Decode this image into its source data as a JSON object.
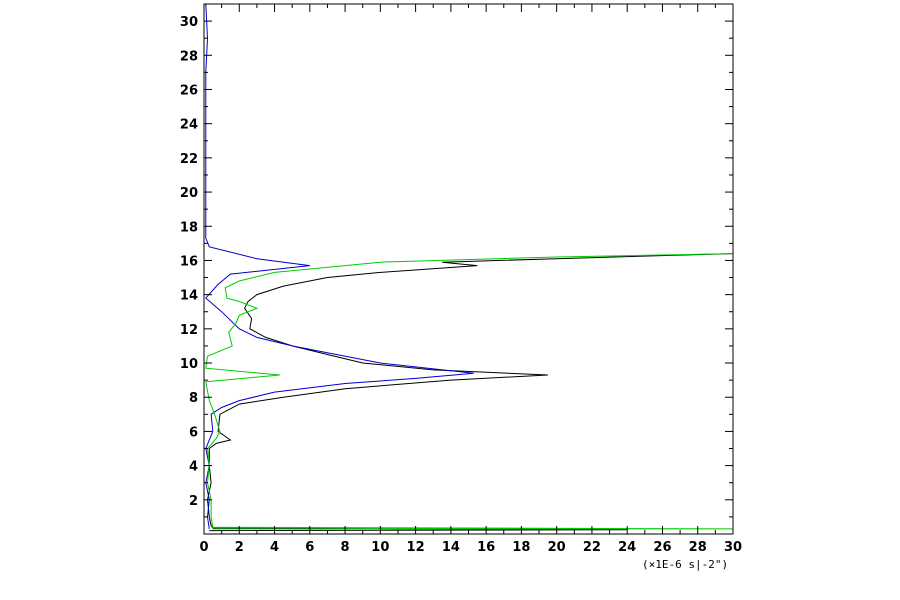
{
  "chart_data": {
    "type": "line",
    "title": "",
    "xlabel": "",
    "ylabel": "",
    "x_unit_label": "(×1E-6 s|-2\")",
    "xlim": [
      0,
      30
    ],
    "ylim": [
      0,
      31
    ],
    "x_ticks": [
      0,
      2,
      4,
      6,
      8,
      10,
      12,
      14,
      16,
      18,
      20,
      22,
      24,
      26,
      28,
      30
    ],
    "y_ticks": [
      2,
      4,
      6,
      8,
      10,
      12,
      14,
      16,
      18,
      20,
      22,
      24,
      26,
      28,
      30
    ],
    "x_tick_labels": [
      "0",
      "2",
      "4",
      "6",
      "8",
      "10",
      "12",
      "14",
      "16",
      "18",
      "20",
      "22",
      "24",
      "26",
      "28",
      "30"
    ],
    "y_tick_labels": [
      "2",
      "4",
      "6",
      "8",
      "10",
      "12",
      "14",
      "16",
      "18",
      "20",
      "22",
      "24",
      "26",
      "28",
      "30"
    ],
    "grid": false,
    "legend": "none",
    "series": [
      {
        "color": "#000000",
        "points": [
          [
            0.3,
            0.2
          ],
          [
            24,
            0.25
          ],
          [
            0.5,
            0.35
          ],
          [
            0.4,
            0.5
          ],
          [
            0.3,
            1
          ],
          [
            0.2,
            2
          ],
          [
            0.4,
            3
          ],
          [
            0.3,
            4
          ],
          [
            0.3,
            5
          ],
          [
            0.7,
            5.3
          ],
          [
            1.5,
            5.5
          ],
          [
            0.8,
            6
          ],
          [
            0.9,
            7
          ],
          [
            2,
            7.6
          ],
          [
            4.5,
            8
          ],
          [
            8,
            8.5
          ],
          [
            14,
            9
          ],
          [
            19.5,
            9.3
          ],
          [
            13,
            9.6
          ],
          [
            9,
            10
          ],
          [
            7,
            10.5
          ],
          [
            5,
            11
          ],
          [
            3.5,
            11.5
          ],
          [
            2.6,
            12
          ],
          [
            2.7,
            12.6
          ],
          [
            2.3,
            13.2
          ],
          [
            2.5,
            13.6
          ],
          [
            3,
            14
          ],
          [
            4.5,
            14.5
          ],
          [
            7,
            15
          ],
          [
            10,
            15.3
          ],
          [
            15.5,
            15.7
          ],
          [
            13.5,
            15.9
          ],
          [
            20,
            16.1
          ],
          [
            30,
            16.4
          ]
        ]
      },
      {
        "color": "#0000cc",
        "points": [
          [
            0.1,
            31
          ],
          [
            0.2,
            29
          ],
          [
            0.1,
            27
          ],
          [
            0.1,
            17.3
          ],
          [
            0.3,
            16.8
          ],
          [
            3,
            16.1
          ],
          [
            6,
            15.7
          ],
          [
            1.5,
            15.2
          ],
          [
            0.8,
            14.6
          ],
          [
            0.1,
            13.8
          ],
          [
            1,
            13
          ],
          [
            2,
            12
          ],
          [
            3,
            11.5
          ],
          [
            5,
            11
          ],
          [
            7.5,
            10.5
          ],
          [
            10,
            10
          ],
          [
            15.3,
            9.4
          ],
          [
            12,
            9.1
          ],
          [
            8,
            8.8
          ],
          [
            4,
            8.3
          ],
          [
            2,
            7.8
          ],
          [
            1,
            7.4
          ],
          [
            0.4,
            7
          ],
          [
            0.5,
            6
          ],
          [
            0.1,
            5
          ],
          [
            0.3,
            4
          ],
          [
            0.1,
            3
          ],
          [
            0.3,
            2
          ],
          [
            0.2,
            1
          ],
          [
            0.3,
            0.3
          ]
        ]
      },
      {
        "color": "#00cc00",
        "points": [
          [
            0.5,
            0.3
          ],
          [
            30,
            0.3
          ],
          [
            0.5,
            0.4
          ],
          [
            0.4,
            1
          ],
          [
            0.4,
            2
          ],
          [
            0.2,
            3
          ],
          [
            0.3,
            4
          ],
          [
            0.2,
            5
          ],
          [
            0.7,
            5.6
          ],
          [
            0.9,
            6
          ],
          [
            0.6,
            7
          ],
          [
            0.3,
            7.8
          ],
          [
            0.1,
            8.9
          ],
          [
            4.3,
            9.3
          ],
          [
            0.1,
            9.7
          ],
          [
            0.2,
            10.4
          ],
          [
            1.6,
            11
          ],
          [
            1.4,
            11.8
          ],
          [
            1.8,
            12.3
          ],
          [
            2,
            12.8
          ],
          [
            3,
            13.2
          ],
          [
            2,
            13.6
          ],
          [
            1.3,
            13.8
          ],
          [
            1.2,
            14.4
          ],
          [
            2,
            14.8
          ],
          [
            4,
            15.3
          ],
          [
            10,
            15.9
          ],
          [
            20,
            16.2
          ],
          [
            30,
            16.4
          ]
        ]
      }
    ]
  }
}
